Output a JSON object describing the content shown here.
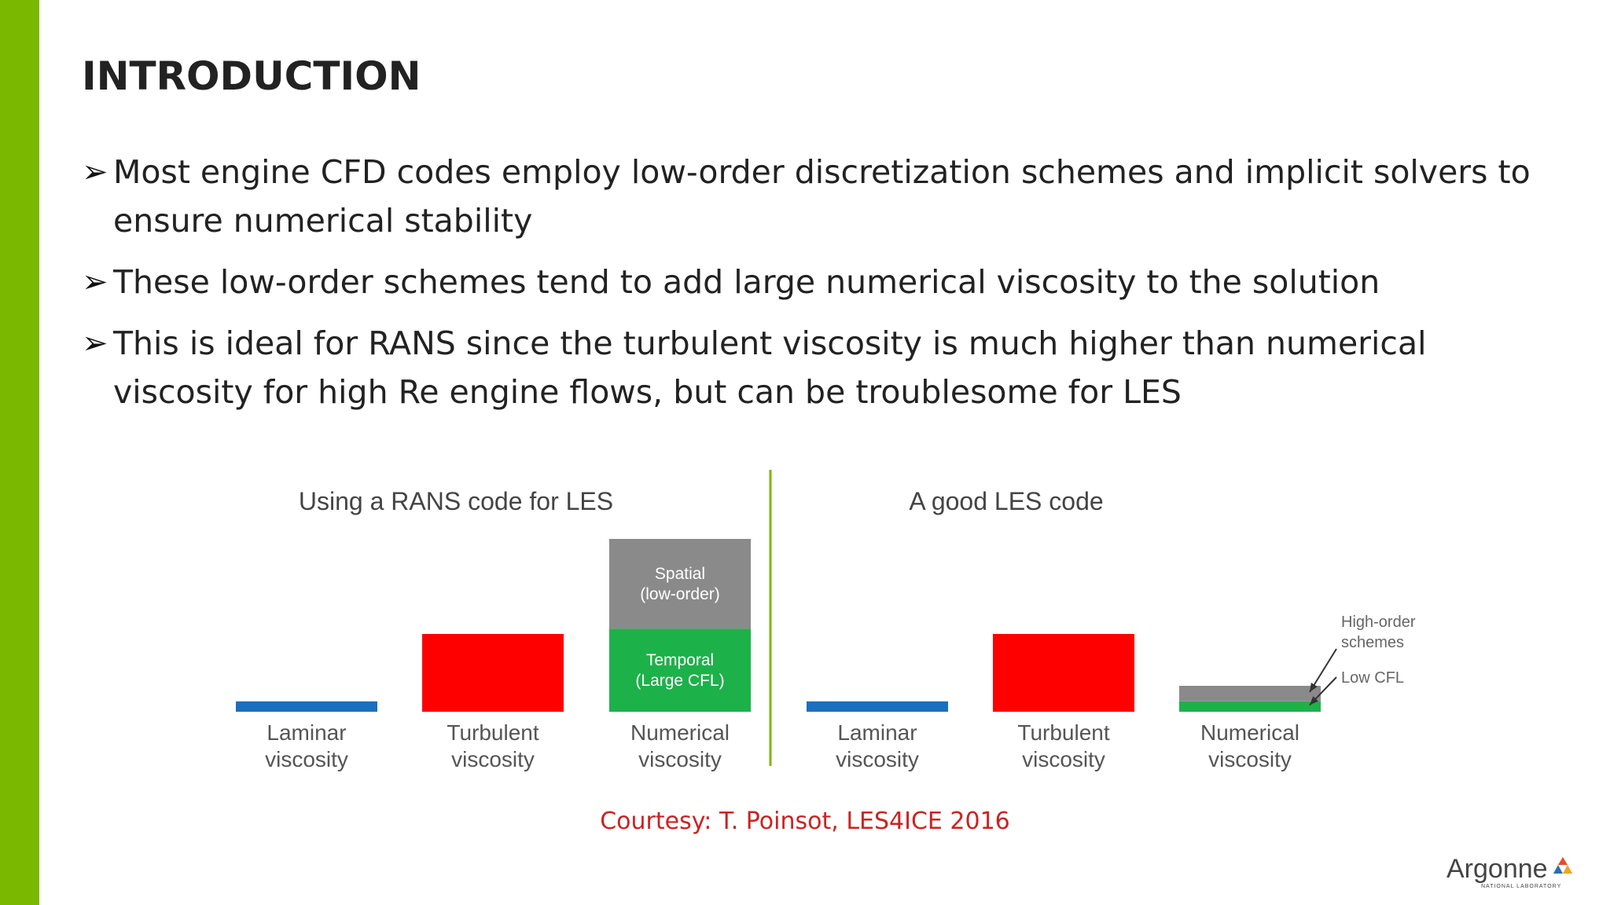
{
  "slide": {
    "title": "INTRODUCTION",
    "accent_color": "#7ab800",
    "bullets": [
      "Most engine CFD codes employ low-order discretization schemes and implicit solvers to ensure numerical stability",
      "These low-order schemes tend to add large numerical viscosity to the solution",
      "This is ideal for RANS since the turbulent viscosity is much higher than numerical viscosity for high Re engine flows, but can be troublesome for LES"
    ],
    "bullet_icon": "arrow-bullet-icon",
    "courtesy": "Courtesy: T. Poinsot, LES4ICE 2016",
    "logo": {
      "name": "Argonne",
      "subtitle": "NATIONAL LABORATORY",
      "icon": "argonne-triangle-logo-icon"
    }
  },
  "chart_data": [
    {
      "type": "bar",
      "title": "Using a RANS code for LES",
      "categories": [
        "Laminar viscosity",
        "Turbulent viscosity",
        "Numerical viscosity"
      ],
      "category_lines": [
        [
          "Laminar",
          "viscosity"
        ],
        [
          "Turbulent",
          "viscosity"
        ],
        [
          "Numerical",
          "viscosity"
        ]
      ],
      "bars": [
        {
          "category": "Laminar viscosity",
          "segments": [
            {
              "label": "",
              "value": 0.06,
              "color": "#1a6fbe"
            }
          ]
        },
        {
          "category": "Turbulent viscosity",
          "segments": [
            {
              "label": "",
              "value": 0.45,
              "color": "#ff0000"
            }
          ]
        },
        {
          "category": "Numerical viscosity",
          "segments": [
            {
              "label": "Temporal (Large CFL)",
              "lines": [
                "Temporal",
                "(Large CFL)"
              ],
              "value": 0.48,
              "color": "#1db14a"
            },
            {
              "label": "Spatial (low-order)",
              "lines": [
                "Spatial",
                "(low-order)"
              ],
              "value": 0.52,
              "color": "#8a8a8a"
            }
          ]
        }
      ]
    },
    {
      "type": "bar",
      "title": "A good LES code",
      "categories": [
        "Laminar viscosity",
        "Turbulent viscosity",
        "Numerical viscosity"
      ],
      "category_lines": [
        [
          "Laminar",
          "viscosity"
        ],
        [
          "Turbulent",
          "viscosity"
        ],
        [
          "Numerical",
          "viscosity"
        ]
      ],
      "bars": [
        {
          "category": "Laminar viscosity",
          "segments": [
            {
              "label": "",
              "value": 0.06,
              "color": "#1a6fbe"
            }
          ]
        },
        {
          "category": "Turbulent viscosity",
          "segments": [
            {
              "label": "",
              "value": 0.45,
              "color": "#ff0000"
            }
          ]
        },
        {
          "category": "Numerical viscosity",
          "segments": [
            {
              "label": "",
              "value": 0.06,
              "color": "#1db14a"
            },
            {
              "label": "",
              "value": 0.09,
              "color": "#8a8a8a"
            }
          ]
        }
      ],
      "annotations": [
        {
          "lines": [
            "High-order",
            "schemes"
          ],
          "target": "Spatial"
        },
        {
          "lines": [
            "Low CFL"
          ],
          "target": "Temporal"
        }
      ]
    }
  ]
}
